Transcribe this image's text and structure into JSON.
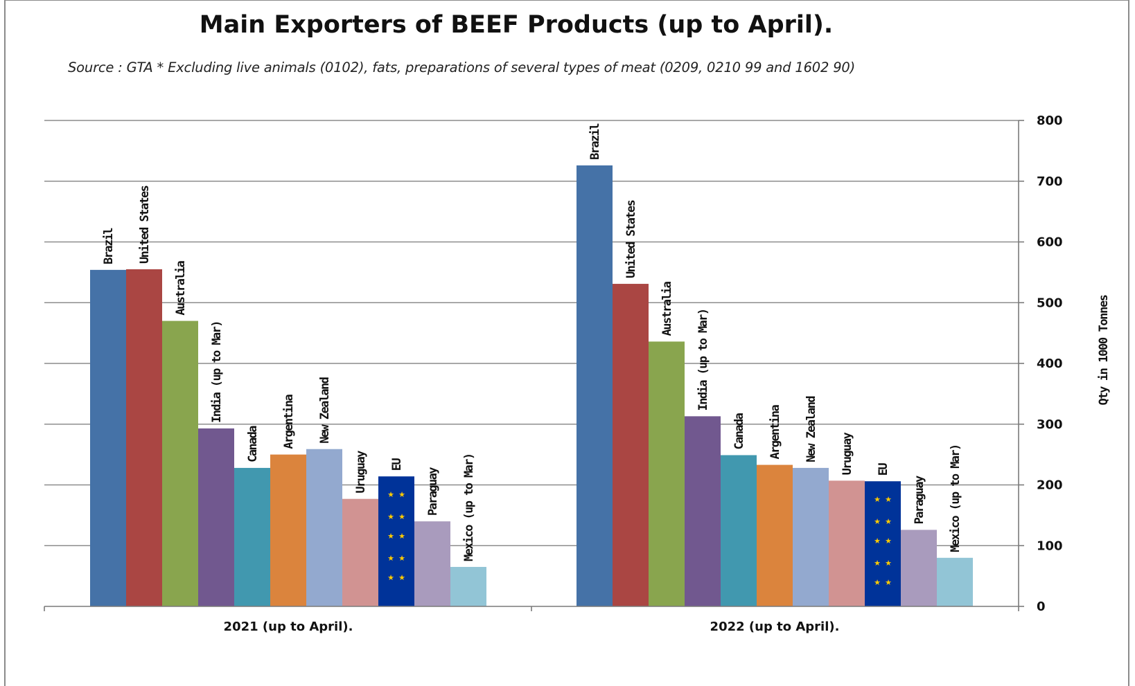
{
  "chart_data": {
    "type": "bar",
    "title": "Main Exporters of BEEF Products (up to April).",
    "subtitle": "Source : GTA * Excluding live animals (0102), fats, preparations of several types of meat (0209, 0210 99 and 1602 90)",
    "categories": [
      "2021 (up to April).",
      "2022 (up to April)."
    ],
    "ylabel": "Qty in 1000 Tonnes",
    "ylim": [
      0,
      800
    ],
    "yticks": [
      "0",
      "100",
      "200",
      "300",
      "400",
      "500",
      "600",
      "700",
      "800"
    ],
    "y_axis_side": "right",
    "grid": true,
    "legend": "none (series names shown as vertical labels above bars)",
    "series": [
      {
        "name": "Brazil",
        "color": "#4572a7",
        "values": [
          554,
          726
        ]
      },
      {
        "name": "United States",
        "color": "#aa4643",
        "values": [
          555,
          531
        ]
      },
      {
        "name": "Australia",
        "color": "#89a54e",
        "values": [
          470,
          436
        ]
      },
      {
        "name": "India (up to Mar)",
        "color": "#71588f",
        "values": [
          293,
          313
        ]
      },
      {
        "name": "Canada",
        "color": "#4198af",
        "values": [
          228,
          249
        ]
      },
      {
        "name": "Argentina",
        "color": "#db843d",
        "values": [
          250,
          233
        ]
      },
      {
        "name": "New Zealand",
        "color": "#93a9cf",
        "values": [
          259,
          228
        ]
      },
      {
        "name": "Uruguay",
        "color": "#d19392",
        "values": [
          177,
          207
        ]
      },
      {
        "name": "EU",
        "color": "#003399",
        "values": [
          214,
          206
        ]
      },
      {
        "name": "Paraguay",
        "color": "#a99bbd",
        "values": [
          140,
          126
        ]
      },
      {
        "name": "Mexico (up to Mar)",
        "color": "#92c5d6",
        "values": [
          65,
          80
        ]
      }
    ],
    "bar_labels": [
      [
        "Brazil",
        "United States",
        "Australia",
        "India (up to Mar)",
        "Canada",
        "Argentina",
        "New Zealand",
        "Uruguay",
        "EU",
        "Paraguay",
        "Mexico (up to Mar)"
      ],
      [
        "Brazil",
        "United States",
        "Australia",
        "India (up to Mar)",
        "Canada",
        "Argentina",
        "New Zealand",
        "Uruguay",
        "EU",
        "Paraguay",
        "Mexico (up to Mar)"
      ]
    ]
  }
}
